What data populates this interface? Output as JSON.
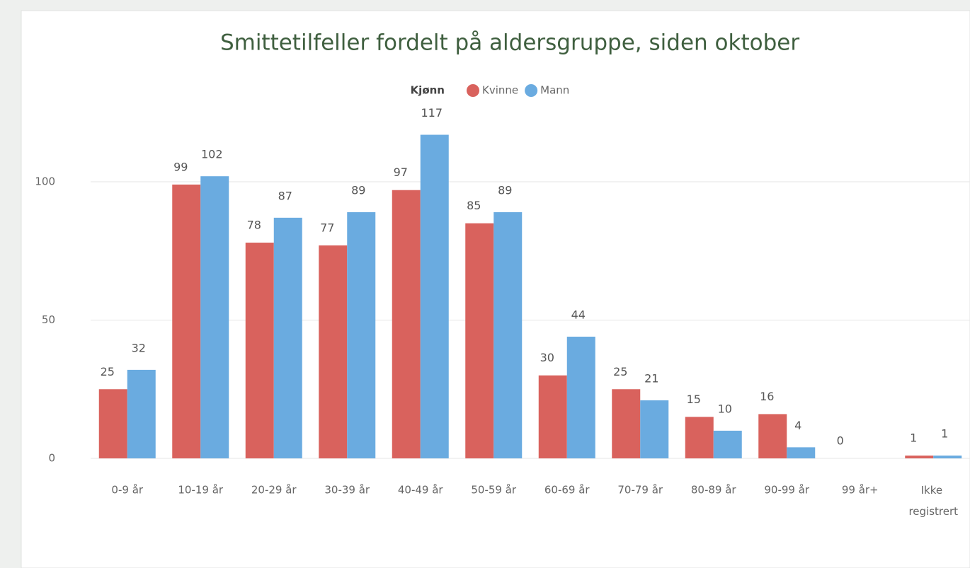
{
  "chart_data": {
    "type": "bar",
    "title": "Smittetilfeller fordelt på aldersgruppe, siden oktober",
    "legend_title": "Kjønn",
    "categories": [
      "0-9 år",
      "10-19 år",
      "20-29 år",
      "30-39 år",
      "40-49 år",
      "50-59 år",
      "60-69 år",
      "70-79 år",
      "80-89 år",
      "90-99 år",
      "99 år+",
      "Ikke registrert"
    ],
    "series": [
      {
        "name": "Kvinne",
        "color": "#d9625d",
        "values": [
          25,
          99,
          78,
          77,
          97,
          85,
          30,
          25,
          15,
          16,
          0,
          1
        ]
      },
      {
        "name": "Mann",
        "color": "#6aabe0",
        "values": [
          32,
          102,
          87,
          89,
          117,
          89,
          44,
          21,
          10,
          4,
          null,
          1
        ]
      }
    ],
    "ylim": [
      0,
      120
    ],
    "yticks": [
      0,
      50,
      100
    ],
    "grid": true
  }
}
